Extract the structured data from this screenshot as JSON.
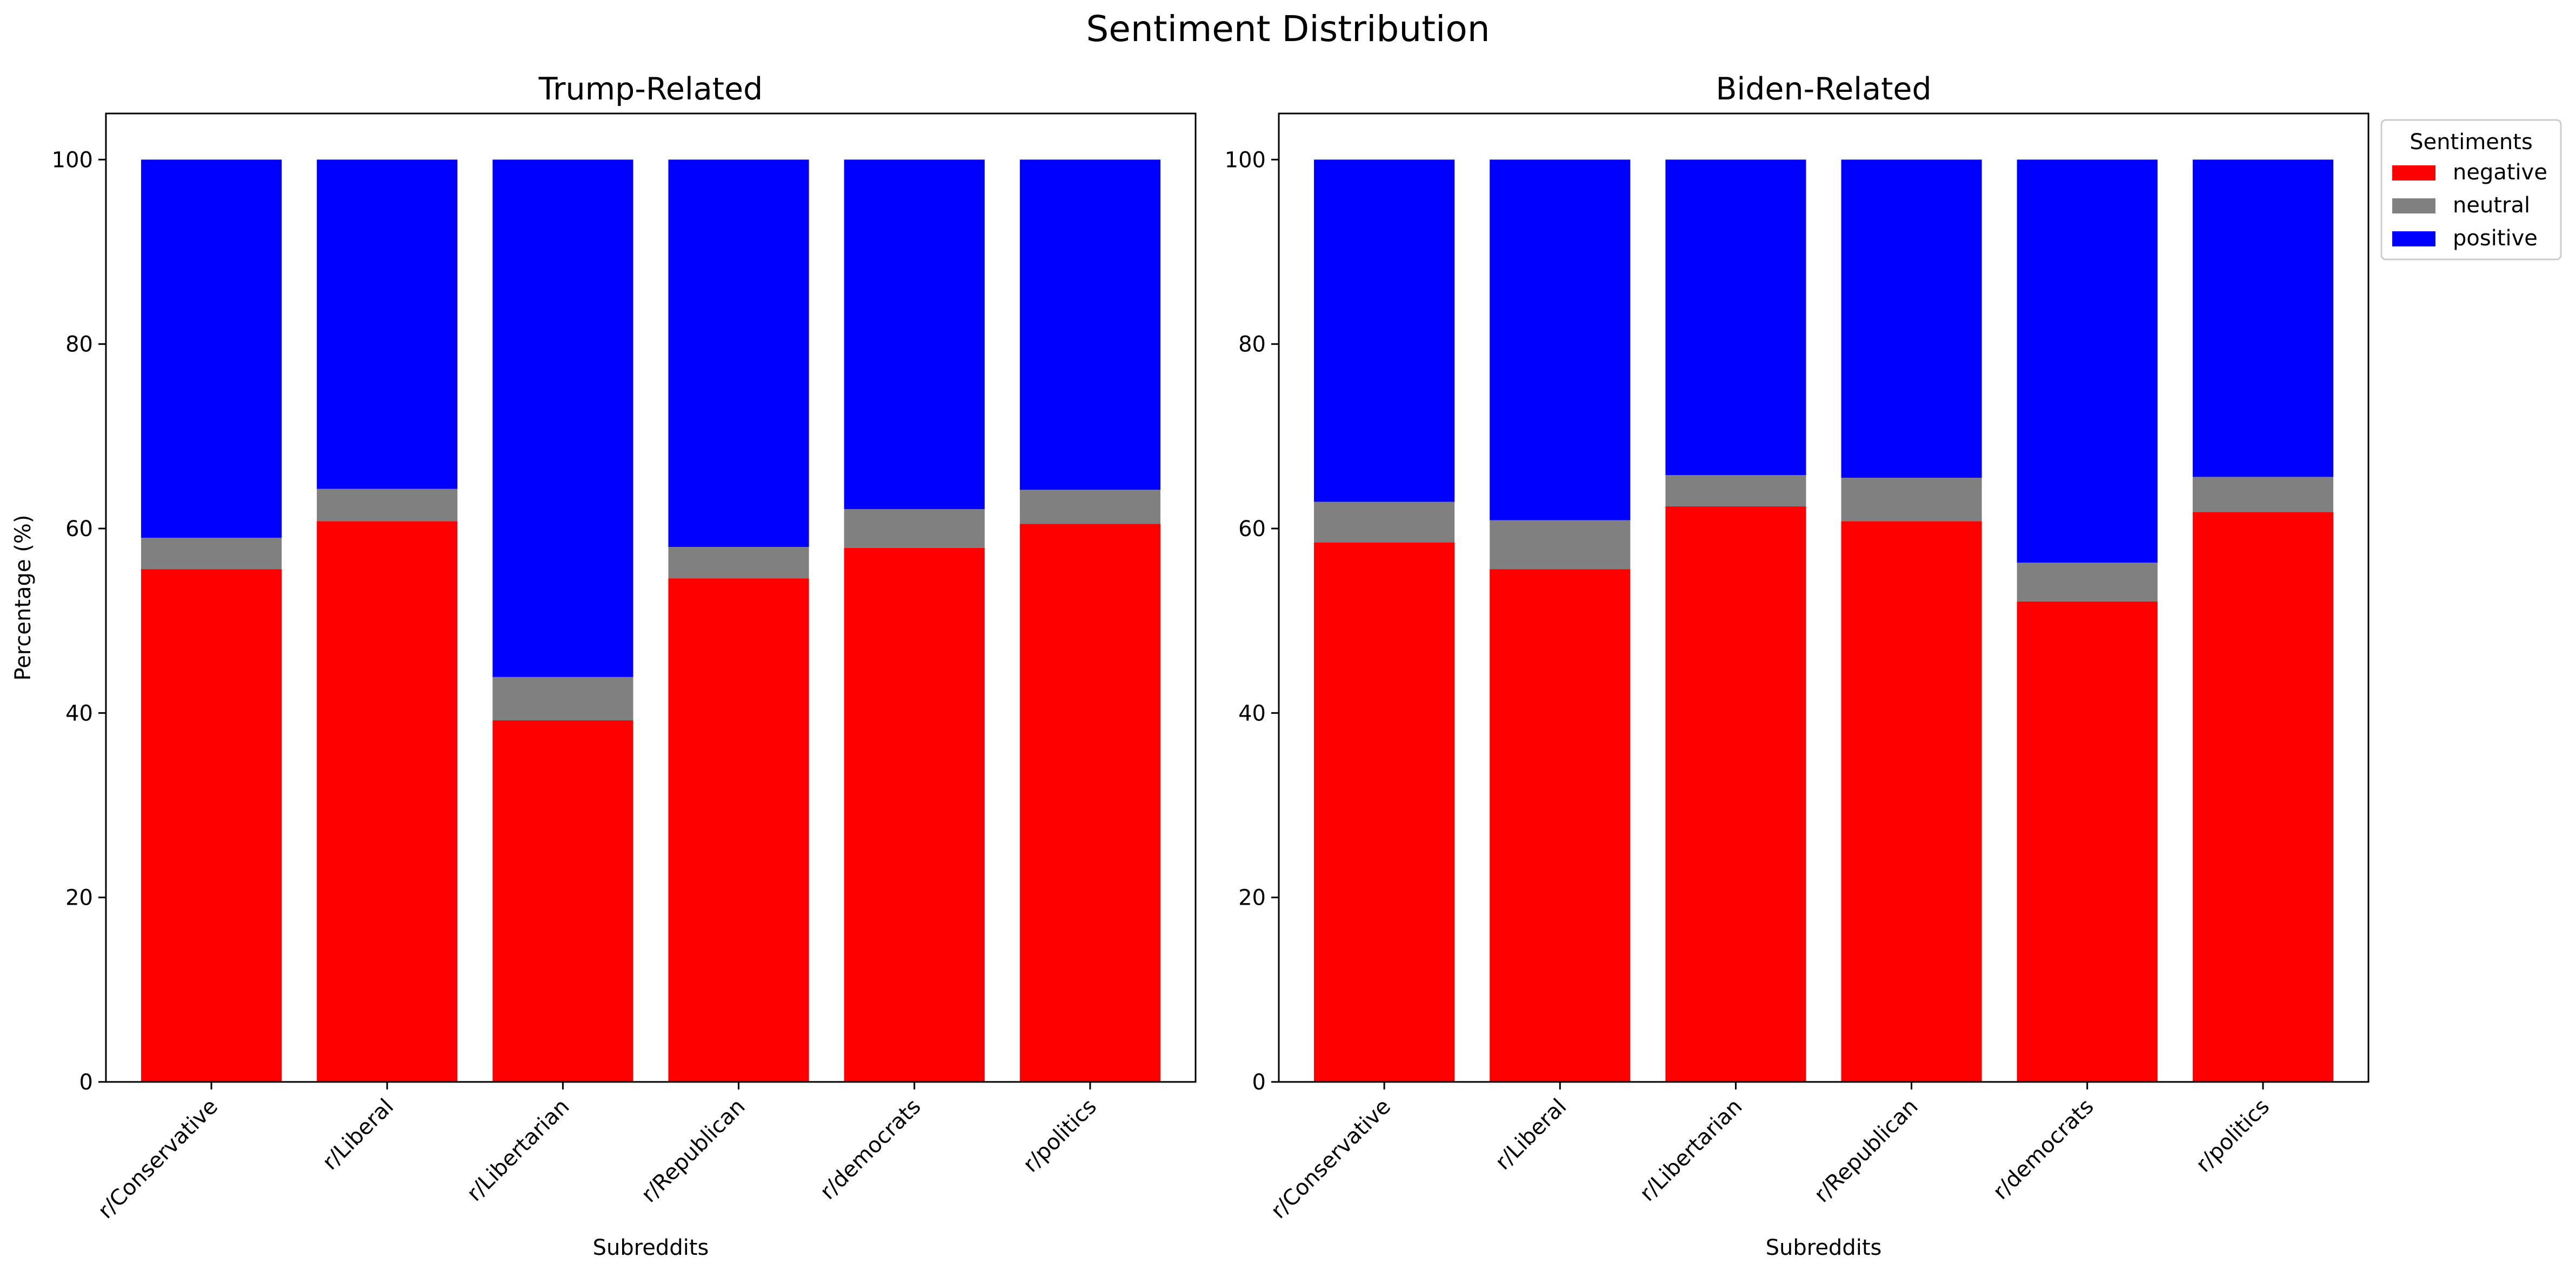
{
  "figure": {
    "title": "Sentiment Distribution"
  },
  "chart_data": [
    {
      "type": "bar",
      "stacked": true,
      "title": "Trump-Related",
      "xlabel": "Subreddits",
      "ylabel": "Percentage (%)",
      "ylim": [
        0,
        105
      ],
      "yticks": [
        0,
        20,
        40,
        60,
        80,
        100
      ],
      "grid": false,
      "categories": [
        "r/Conservative",
        "r/Liberal",
        "r/Libertarian",
        "r/Republican",
        "r/democrats",
        "r/politics"
      ],
      "series": [
        {
          "name": "negative",
          "color": "#ff0000",
          "values": [
            55.6,
            60.8,
            39.2,
            54.6,
            57.9,
            60.5
          ]
        },
        {
          "name": "neutral",
          "color": "#808080",
          "values": [
            3.4,
            3.5,
            4.7,
            3.4,
            4.2,
            3.7
          ]
        },
        {
          "name": "positive",
          "color": "#0000ff",
          "values": [
            41.0,
            35.7,
            56.1,
            42.0,
            37.9,
            35.8
          ]
        }
      ]
    },
    {
      "type": "bar",
      "stacked": true,
      "title": "Biden-Related",
      "xlabel": "Subreddits",
      "ylabel": "",
      "ylim": [
        0,
        105
      ],
      "yticks": [
        0,
        20,
        40,
        60,
        80,
        100
      ],
      "grid": false,
      "categories": [
        "r/Conservative",
        "r/Liberal",
        "r/Libertarian",
        "r/Republican",
        "r/democrats",
        "r/politics"
      ],
      "series": [
        {
          "name": "negative",
          "color": "#ff0000",
          "values": [
            58.5,
            55.6,
            62.4,
            60.8,
            52.1,
            61.8
          ]
        },
        {
          "name": "neutral",
          "color": "#808080",
          "values": [
            4.4,
            5.3,
            3.4,
            4.7,
            4.2,
            3.8
          ]
        },
        {
          "name": "positive",
          "color": "#0000ff",
          "values": [
            37.1,
            39.1,
            34.2,
            34.5,
            43.7,
            34.4
          ]
        }
      ],
      "legend": {
        "title": "Sentiments",
        "placement": "outside-upper-right",
        "entries": [
          "negative",
          "neutral",
          "positive"
        ]
      }
    }
  ]
}
